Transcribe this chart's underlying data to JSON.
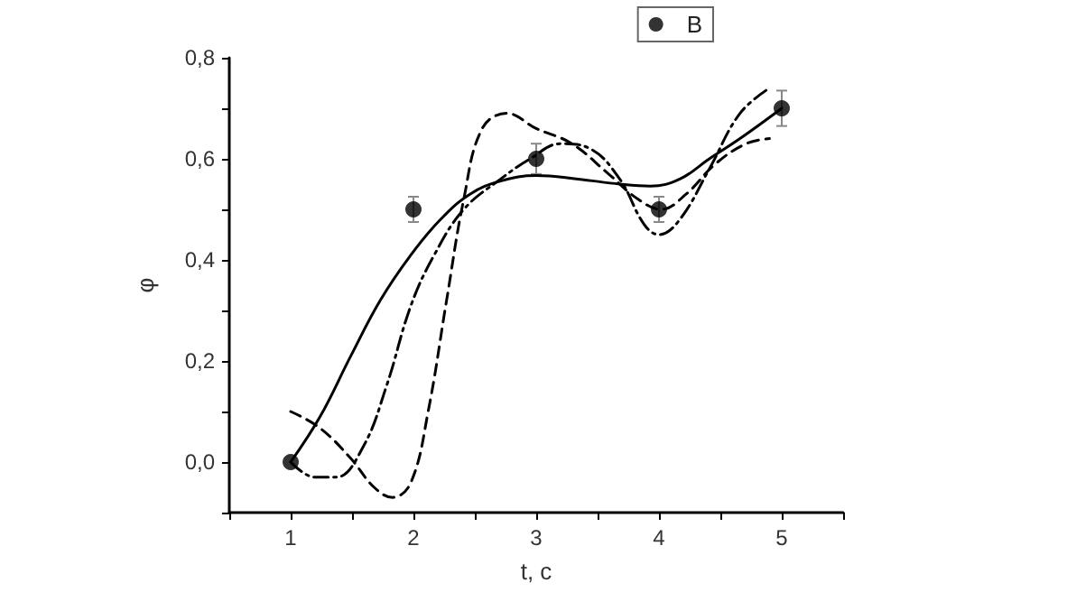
{
  "chart_data": {
    "type": "scatter",
    "xlabel": "t, c",
    "ylabel": "φ",
    "xlim": [
      0.5,
      5.5
    ],
    "xticks": [
      {
        "value": 0.5,
        "label": null
      },
      1,
      {
        "value": 1.5,
        "label": null
      },
      2,
      {
        "value": 2.5,
        "label": null
      },
      3,
      {
        "value": 3.5,
        "label": null
      },
      4,
      {
        "value": 4.5,
        "label": null
      },
      5,
      {
        "value": 5.5,
        "label": null
      }
    ],
    "ylim": [
      -0.1,
      0.8
    ],
    "yticks": [
      {
        "value": -0.1,
        "label": null
      },
      {
        "value": 0,
        "label": "0,0"
      },
      {
        "value": 0.1,
        "label": null
      },
      {
        "value": 0.2,
        "label": "0,2"
      },
      {
        "value": 0.3,
        "label": null
      },
      {
        "value": 0.4,
        "label": "0,4"
      },
      {
        "value": 0.5,
        "label": null
      },
      {
        "value": 0.6,
        "label": "0,6"
      },
      {
        "value": 0.7,
        "label": null
      },
      {
        "value": 0.8,
        "label": "0,8"
      }
    ],
    "grid": false,
    "legend": "top right",
    "series": [
      {
        "name": "B",
        "color": "#000000",
        "marker": "circle",
        "x": [
          1,
          2,
          3,
          4,
          5
        ],
        "values": [
          0,
          0.5,
          0.6,
          0.5,
          0.7
        ],
        "errors": [
          null,
          0.025,
          0.03,
          0.025,
          0.035
        ]
      },
      {
        "type": "line",
        "color": "#000000",
        "marker": "none",
        "line_style": "solid",
        "x": [
          1,
          1.24,
          1.49,
          1.73,
          1.98,
          2.22,
          2.46,
          2.71,
          3,
          3.34,
          3.68,
          3.93,
          4.17,
          4.41,
          4.66,
          5
        ],
        "values": [
          0,
          0.09,
          0.21,
          0.32,
          0.41,
          0.48,
          0.53,
          0.556,
          0.567,
          0.56,
          0.55,
          0.546,
          0.56,
          0.6,
          0.64,
          0.7
        ]
      },
      {
        "type": "line",
        "color": "#000000",
        "marker": "none",
        "line_style": "dashed",
        "x": [
          1,
          1.24,
          1.49,
          1.68,
          1.83,
          1.98,
          2.12,
          2.27,
          2.41,
          2.56,
          2.76,
          3,
          3.29,
          3.59,
          3.83,
          4.02,
          4.22,
          4.46,
          4.71,
          4.9
        ],
        "values": [
          0.1,
          0.067,
          0.007,
          -0.05,
          -0.07,
          -0.04,
          0.1,
          0.32,
          0.52,
          0.66,
          0.69,
          0.66,
          0.63,
          0.57,
          0.52,
          0.5,
          0.53,
          0.59,
          0.63,
          0.64
        ]
      },
      {
        "type": "line",
        "color": "#000000",
        "marker": "none",
        "line_style": "dashdot",
        "x": [
          1,
          1.2,
          1.37,
          1.59,
          1.78,
          1.98,
          2.17,
          2.41,
          2.71,
          2.95,
          3.2,
          3.44,
          3.68,
          3.88,
          4,
          4.17,
          4.41,
          4.66,
          4.9
        ],
        "values": [
          0,
          -0.03,
          -0.03,
          0.03,
          0.15,
          0.31,
          0.41,
          0.5,
          0.56,
          0.6,
          0.63,
          0.62,
          0.56,
          0.47,
          0.45,
          0.48,
          0.58,
          0.69,
          0.74
        ]
      }
    ]
  }
}
